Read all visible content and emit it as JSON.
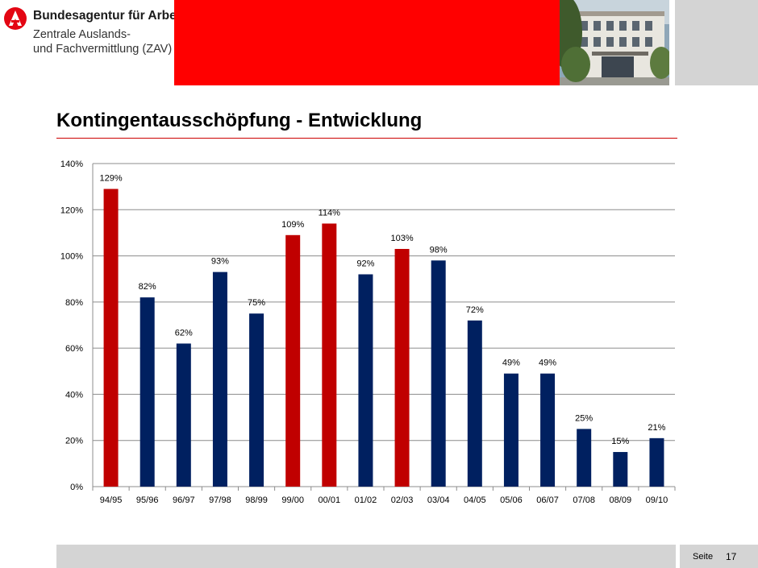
{
  "header": {
    "org_name": "Bundesagentur für Arbeit",
    "org_sub_line1": "Zentrale Auslands-",
    "org_sub_line2": "und Fachvermittlung (ZAV)"
  },
  "colors": {
    "brand_red": "#ff0000",
    "bar_red": "#c00000",
    "bar_blue": "#002060",
    "gray": "#d4d4d4"
  },
  "chart_data": {
    "type": "bar",
    "title": "Kontingentausschöpfung - Entwicklung",
    "xlabel": "",
    "ylabel": "",
    "ylim": [
      0,
      140
    ],
    "yticks": [
      "0%",
      "20%",
      "40%",
      "60%",
      "80%",
      "100%",
      "120%",
      "140%"
    ],
    "grid": true,
    "categories": [
      "94/95",
      "95/96",
      "96/97",
      "97/98",
      "98/99",
      "99/00",
      "00/01",
      "01/02",
      "02/03",
      "03/04",
      "04/05",
      "05/06",
      "06/07",
      "07/08",
      "08/09",
      "09/10"
    ],
    "values": [
      129,
      82,
      62,
      93,
      75,
      109,
      114,
      92,
      103,
      98,
      72,
      49,
      49,
      25,
      15,
      21
    ],
    "labels": [
      "129%",
      "82%",
      "62%",
      "93%",
      "75%",
      "109%",
      "114%",
      "92%",
      "103%",
      "98%",
      "72%",
      "49%",
      "49%",
      "25%",
      "15%",
      "21%"
    ],
    "bar_colors": [
      "red",
      "blue",
      "blue",
      "blue",
      "blue",
      "red",
      "red",
      "blue",
      "red",
      "blue",
      "blue",
      "blue",
      "blue",
      "blue",
      "blue",
      "blue"
    ]
  },
  "footer": {
    "page_label": "Seite",
    "page_number": "17"
  }
}
